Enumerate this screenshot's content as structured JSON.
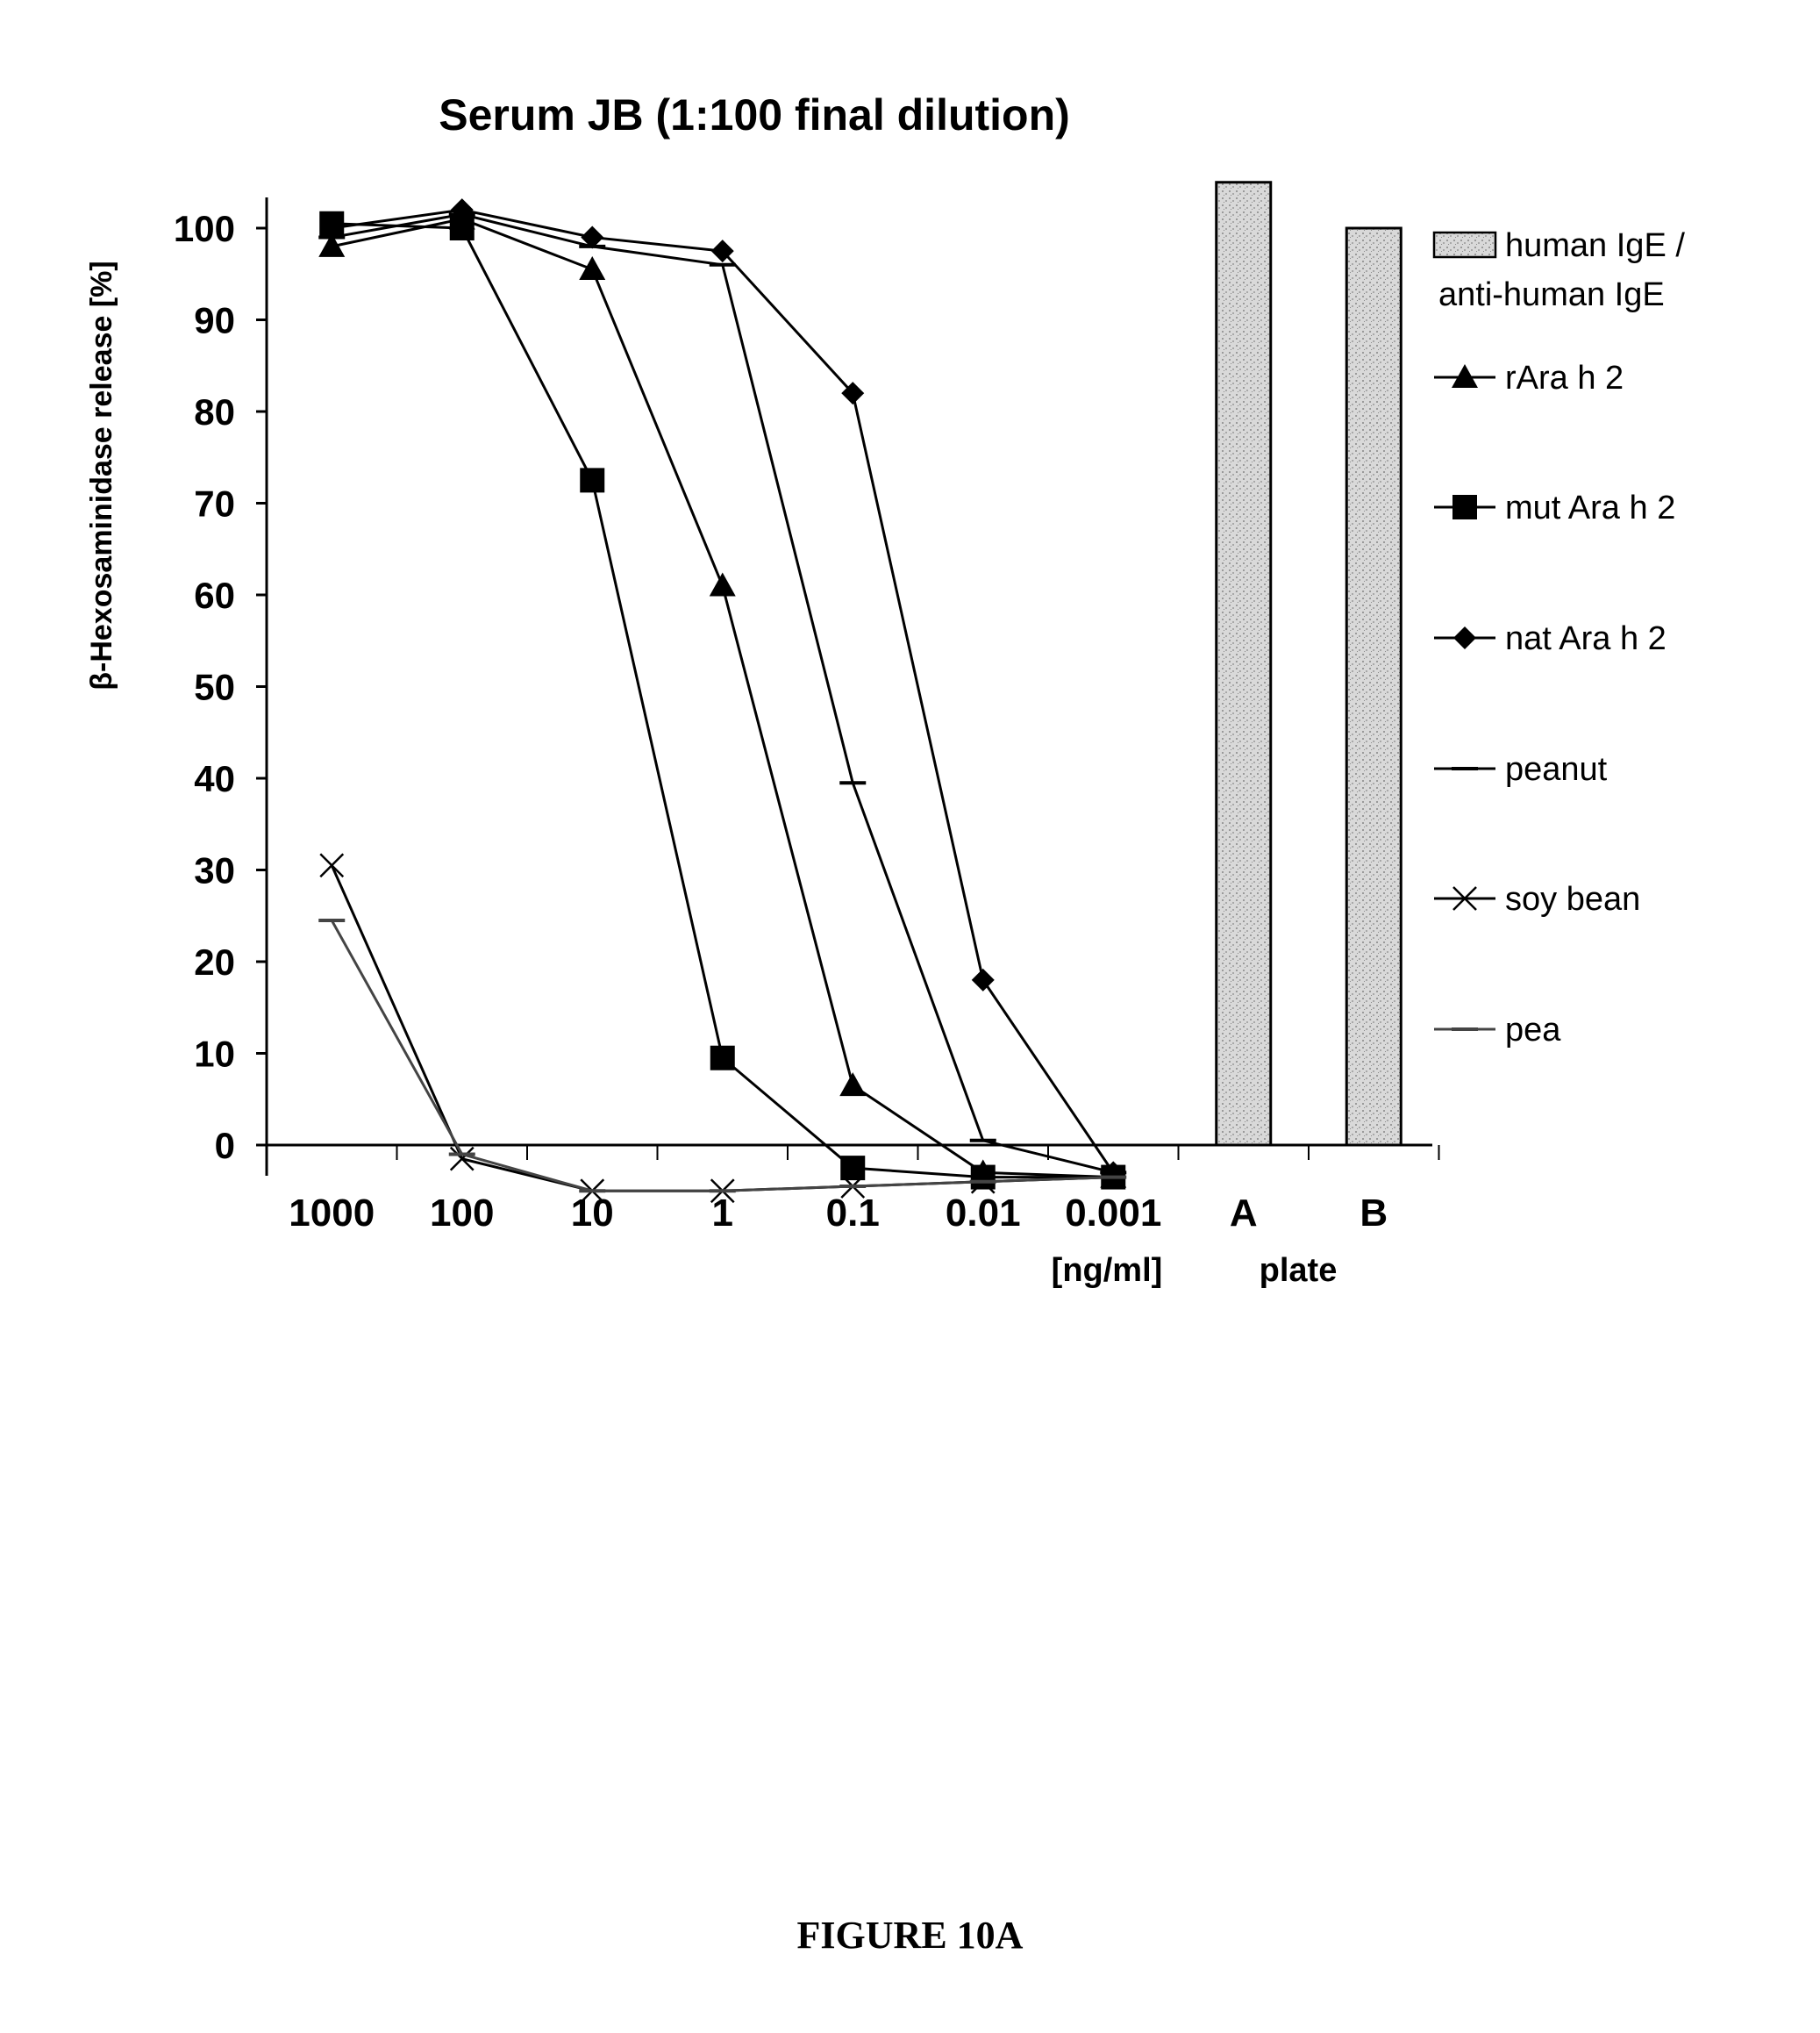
{
  "chart_data": {
    "type": "line",
    "title": "Serum JB (1:100 final dilution)",
    "ylabel": "β-Hexosaminidase release [%]",
    "xunit_label": "[ng/ml]",
    "plate_label": "plate",
    "ylim": [
      -5,
      105
    ],
    "yticks": [
      0,
      10,
      20,
      30,
      40,
      50,
      60,
      70,
      80,
      90,
      100
    ],
    "categories": [
      "1000",
      "100",
      "10",
      "1",
      "0.1",
      "0.01",
      "0.001"
    ],
    "bar_categories": [
      "A",
      "B"
    ],
    "grid": false,
    "legend_position": "right",
    "bars": {
      "name": "human IgE / anti-human IgE",
      "name_lines": [
        "human IgE /",
        "anti-human IgE"
      ],
      "values": [
        105,
        100
      ],
      "color": "#bdbdbd"
    },
    "series": [
      {
        "name": "rAra h 2",
        "marker": "triangle",
        "color": "#000000",
        "values": [
          98,
          101,
          95.5,
          61,
          6.5,
          -3,
          -3.5
        ]
      },
      {
        "name": "mut Ara h 2",
        "marker": "square",
        "color": "#000000",
        "values": [
          100.5,
          100,
          72.5,
          9.5,
          -2.5,
          -3.5,
          -3.5
        ]
      },
      {
        "name": "nat Ara h 2",
        "marker": "diamond",
        "color": "#000000",
        "values": [
          100,
          102,
          99,
          97.5,
          82,
          18,
          -3
        ]
      },
      {
        "name": "peanut",
        "marker": "dash",
        "color": "#000000",
        "values": [
          99,
          101.5,
          98,
          96,
          39.5,
          0.5,
          -3
        ]
      },
      {
        "name": "soy bean",
        "marker": "x",
        "color": "#000000",
        "values": [
          30.5,
          -1.5,
          -5,
          -5,
          -4.5,
          -4,
          -3.5
        ]
      },
      {
        "name": "pea",
        "marker": "dash",
        "color": "#444444",
        "values": [
          24.5,
          -1,
          -5,
          -5,
          -4.5,
          -4,
          -3.5
        ]
      }
    ]
  },
  "figure_caption": "FIGURE 10A"
}
